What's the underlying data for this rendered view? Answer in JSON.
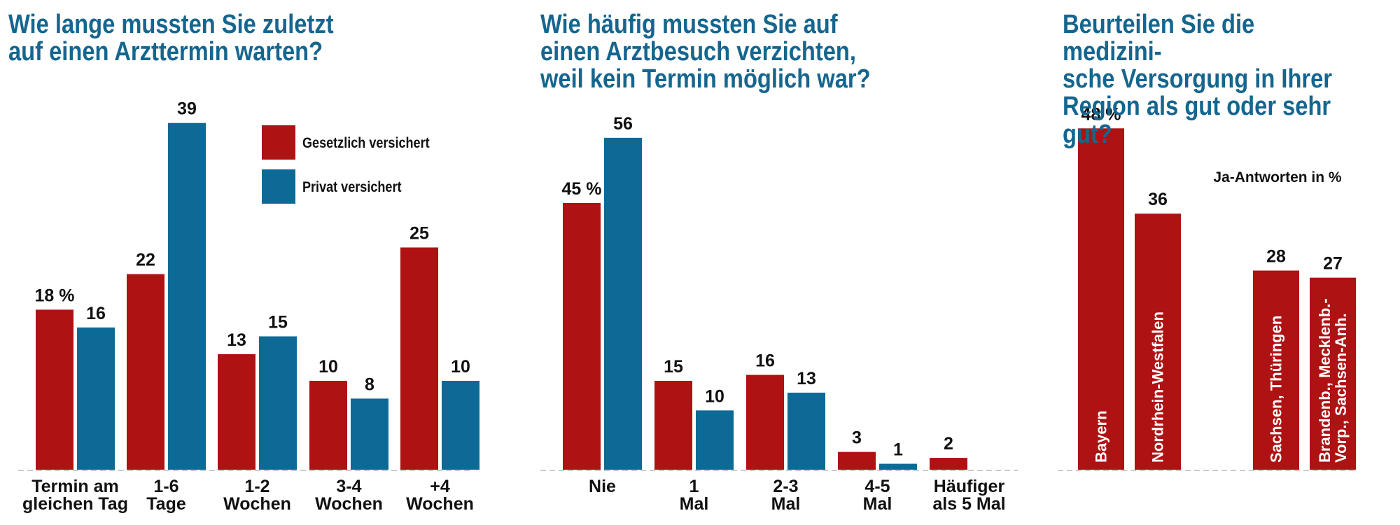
{
  "chart_data": [
    {
      "type": "bar",
      "title": "Wie lange mussten Sie zuletzt\nauf einen Arzttermin warten?",
      "categories": [
        "Termin am\ngleichen Tag",
        "1-6\nTage",
        "1-2\nWochen",
        "3-4\nWochen",
        "+4\nWochen"
      ],
      "series": [
        {
          "name": "Gesetzlich versichert",
          "color": "#ae1212",
          "values": [
            18,
            22,
            13,
            10,
            25
          ],
          "value_labels": [
            "18 %",
            "22",
            "13",
            "10",
            "25"
          ]
        },
        {
          "name": "Privat versichert",
          "color": "#0d6a96",
          "values": [
            16,
            39,
            15,
            8,
            10
          ]
        }
      ],
      "ylim": [
        0,
        40
      ],
      "legend": true
    },
    {
      "type": "bar",
      "title": "Wie häufig mussten Sie  auf\neinen Arztbesuch verzichten,\nweil kein Termin möglich war?",
      "categories": [
        "Nie",
        "1\nMal",
        "2-3\nMal",
        "4-5\nMal",
        "Häufiger\nals 5 Mal"
      ],
      "series": [
        {
          "name": "Gesetzlich versichert",
          "color": "#ae1212",
          "values": [
            45,
            15,
            16,
            3,
            2
          ],
          "value_labels": [
            "45 %",
            "15",
            "16",
            "3",
            "2"
          ]
        },
        {
          "name": "Privat versichert",
          "color": "#0d6a96",
          "values": [
            56,
            10,
            13,
            1,
            null
          ]
        }
      ],
      "ylim": [
        0,
        60
      ],
      "legend": false
    },
    {
      "type": "bar",
      "title": "Beurteilen Sie die medizini-\nsche Versorgung in Ihrer\nRegion als gut oder sehr gut?",
      "note": "Ja-Antworten in %",
      "categories": [
        "Bayern",
        "Nordrhein-Westfalen",
        "Sachsen, Thüringen",
        "Brandenb., Mecklenb.-\nVorp., Sachsen-Anh."
      ],
      "series": [
        {
          "color": "#ae1212",
          "values": [
            48,
            36,
            28,
            27
          ],
          "value_labels": [
            "48 %",
            "36",
            "28",
            "27"
          ]
        }
      ],
      "ylim": [
        0,
        50
      ],
      "legend": false
    }
  ]
}
